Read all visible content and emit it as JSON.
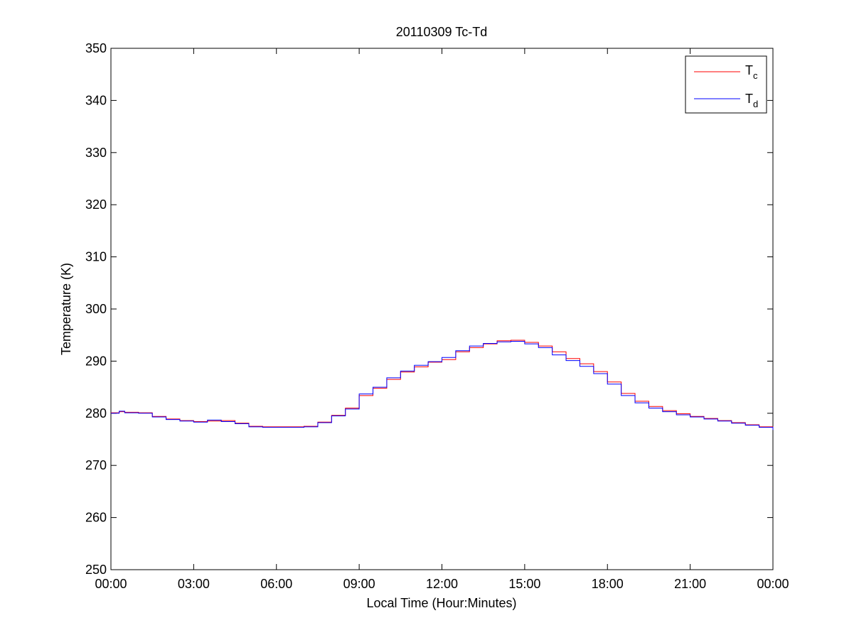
{
  "chart_data": {
    "type": "line",
    "title": "20110309 Tc-Td",
    "xlabel": "Local Time (Hour:Minutes)",
    "ylabel": "Temperature (K)",
    "xlim": [
      0,
      24
    ],
    "ylim": [
      250,
      350
    ],
    "x_ticks": [
      0,
      3,
      6,
      9,
      12,
      15,
      18,
      21,
      24
    ],
    "x_tick_labels": [
      "00:00",
      "03:00",
      "06:00",
      "09:00",
      "12:00",
      "15:00",
      "18:00",
      "21:00",
      "00:00"
    ],
    "y_ticks": [
      250,
      260,
      270,
      280,
      290,
      300,
      310,
      320,
      330,
      340,
      350
    ],
    "y_tick_labels": [
      "250",
      "260",
      "270",
      "280",
      "290",
      "300",
      "310",
      "320",
      "330",
      "340",
      "350"
    ],
    "grid": false,
    "legend_position": "top-right",
    "series": [
      {
        "name": "T",
        "subscript": "c",
        "color": "#ff0000",
        "x": [
          0,
          0.3,
          0.5,
          1.0,
          1.5,
          2.0,
          2.5,
          3.0,
          3.5,
          4.0,
          4.5,
          5.0,
          5.5,
          6.0,
          6.5,
          7.0,
          7.5,
          8.0,
          8.5,
          9.0,
          9.5,
          10.0,
          10.5,
          11.0,
          11.5,
          12.0,
          12.5,
          13.0,
          13.5,
          14.0,
          14.5,
          15.0,
          15.5,
          16.0,
          16.5,
          17.0,
          17.5,
          18.0,
          18.5,
          19.0,
          19.5,
          20.0,
          20.5,
          21.0,
          21.5,
          22.0,
          22.5,
          23.0,
          23.5,
          24.0
        ],
        "values": [
          280.1,
          280.3,
          280.2,
          280.1,
          279.4,
          278.9,
          278.6,
          278.4,
          278.5,
          278.6,
          278.1,
          277.5,
          277.4,
          277.4,
          277.4,
          277.5,
          278.3,
          279.6,
          281.0,
          283.4,
          284.8,
          286.5,
          287.9,
          288.9,
          289.8,
          290.3,
          291.8,
          292.6,
          293.3,
          293.9,
          294.0,
          293.6,
          292.9,
          291.8,
          290.5,
          289.5,
          288.0,
          286.0,
          283.8,
          282.3,
          281.3,
          280.5,
          279.9,
          279.4,
          279.0,
          278.6,
          278.2,
          277.8,
          277.4,
          276.9
        ]
      },
      {
        "name": "T",
        "subscript": "d",
        "color": "#0000ff",
        "x": [
          0,
          0.3,
          0.5,
          1.0,
          1.5,
          2.0,
          2.5,
          3.0,
          3.5,
          4.0,
          4.5,
          5.0,
          5.5,
          6.0,
          6.5,
          7.0,
          7.5,
          8.0,
          8.5,
          9.0,
          9.5,
          10.0,
          10.5,
          11.0,
          11.5,
          12.0,
          12.5,
          13.0,
          13.5,
          14.0,
          14.5,
          15.0,
          15.5,
          16.0,
          16.5,
          17.0,
          17.5,
          18.0,
          18.5,
          19.0,
          19.5,
          20.0,
          20.5,
          21.0,
          21.5,
          22.0,
          22.5,
          23.0,
          23.5,
          24.0
        ],
        "values": [
          280.0,
          280.4,
          280.1,
          280.0,
          279.3,
          278.8,
          278.5,
          278.3,
          278.7,
          278.4,
          278.0,
          277.4,
          277.3,
          277.3,
          277.3,
          277.4,
          278.2,
          279.5,
          280.8,
          283.7,
          285.0,
          286.8,
          288.1,
          289.2,
          289.9,
          290.7,
          292.0,
          292.9,
          293.4,
          293.7,
          293.8,
          293.3,
          292.6,
          291.2,
          290.1,
          289.0,
          287.6,
          285.6,
          283.4,
          282.0,
          281.0,
          280.3,
          279.7,
          279.3,
          278.9,
          278.5,
          278.1,
          277.7,
          277.3,
          276.8
        ]
      }
    ]
  }
}
